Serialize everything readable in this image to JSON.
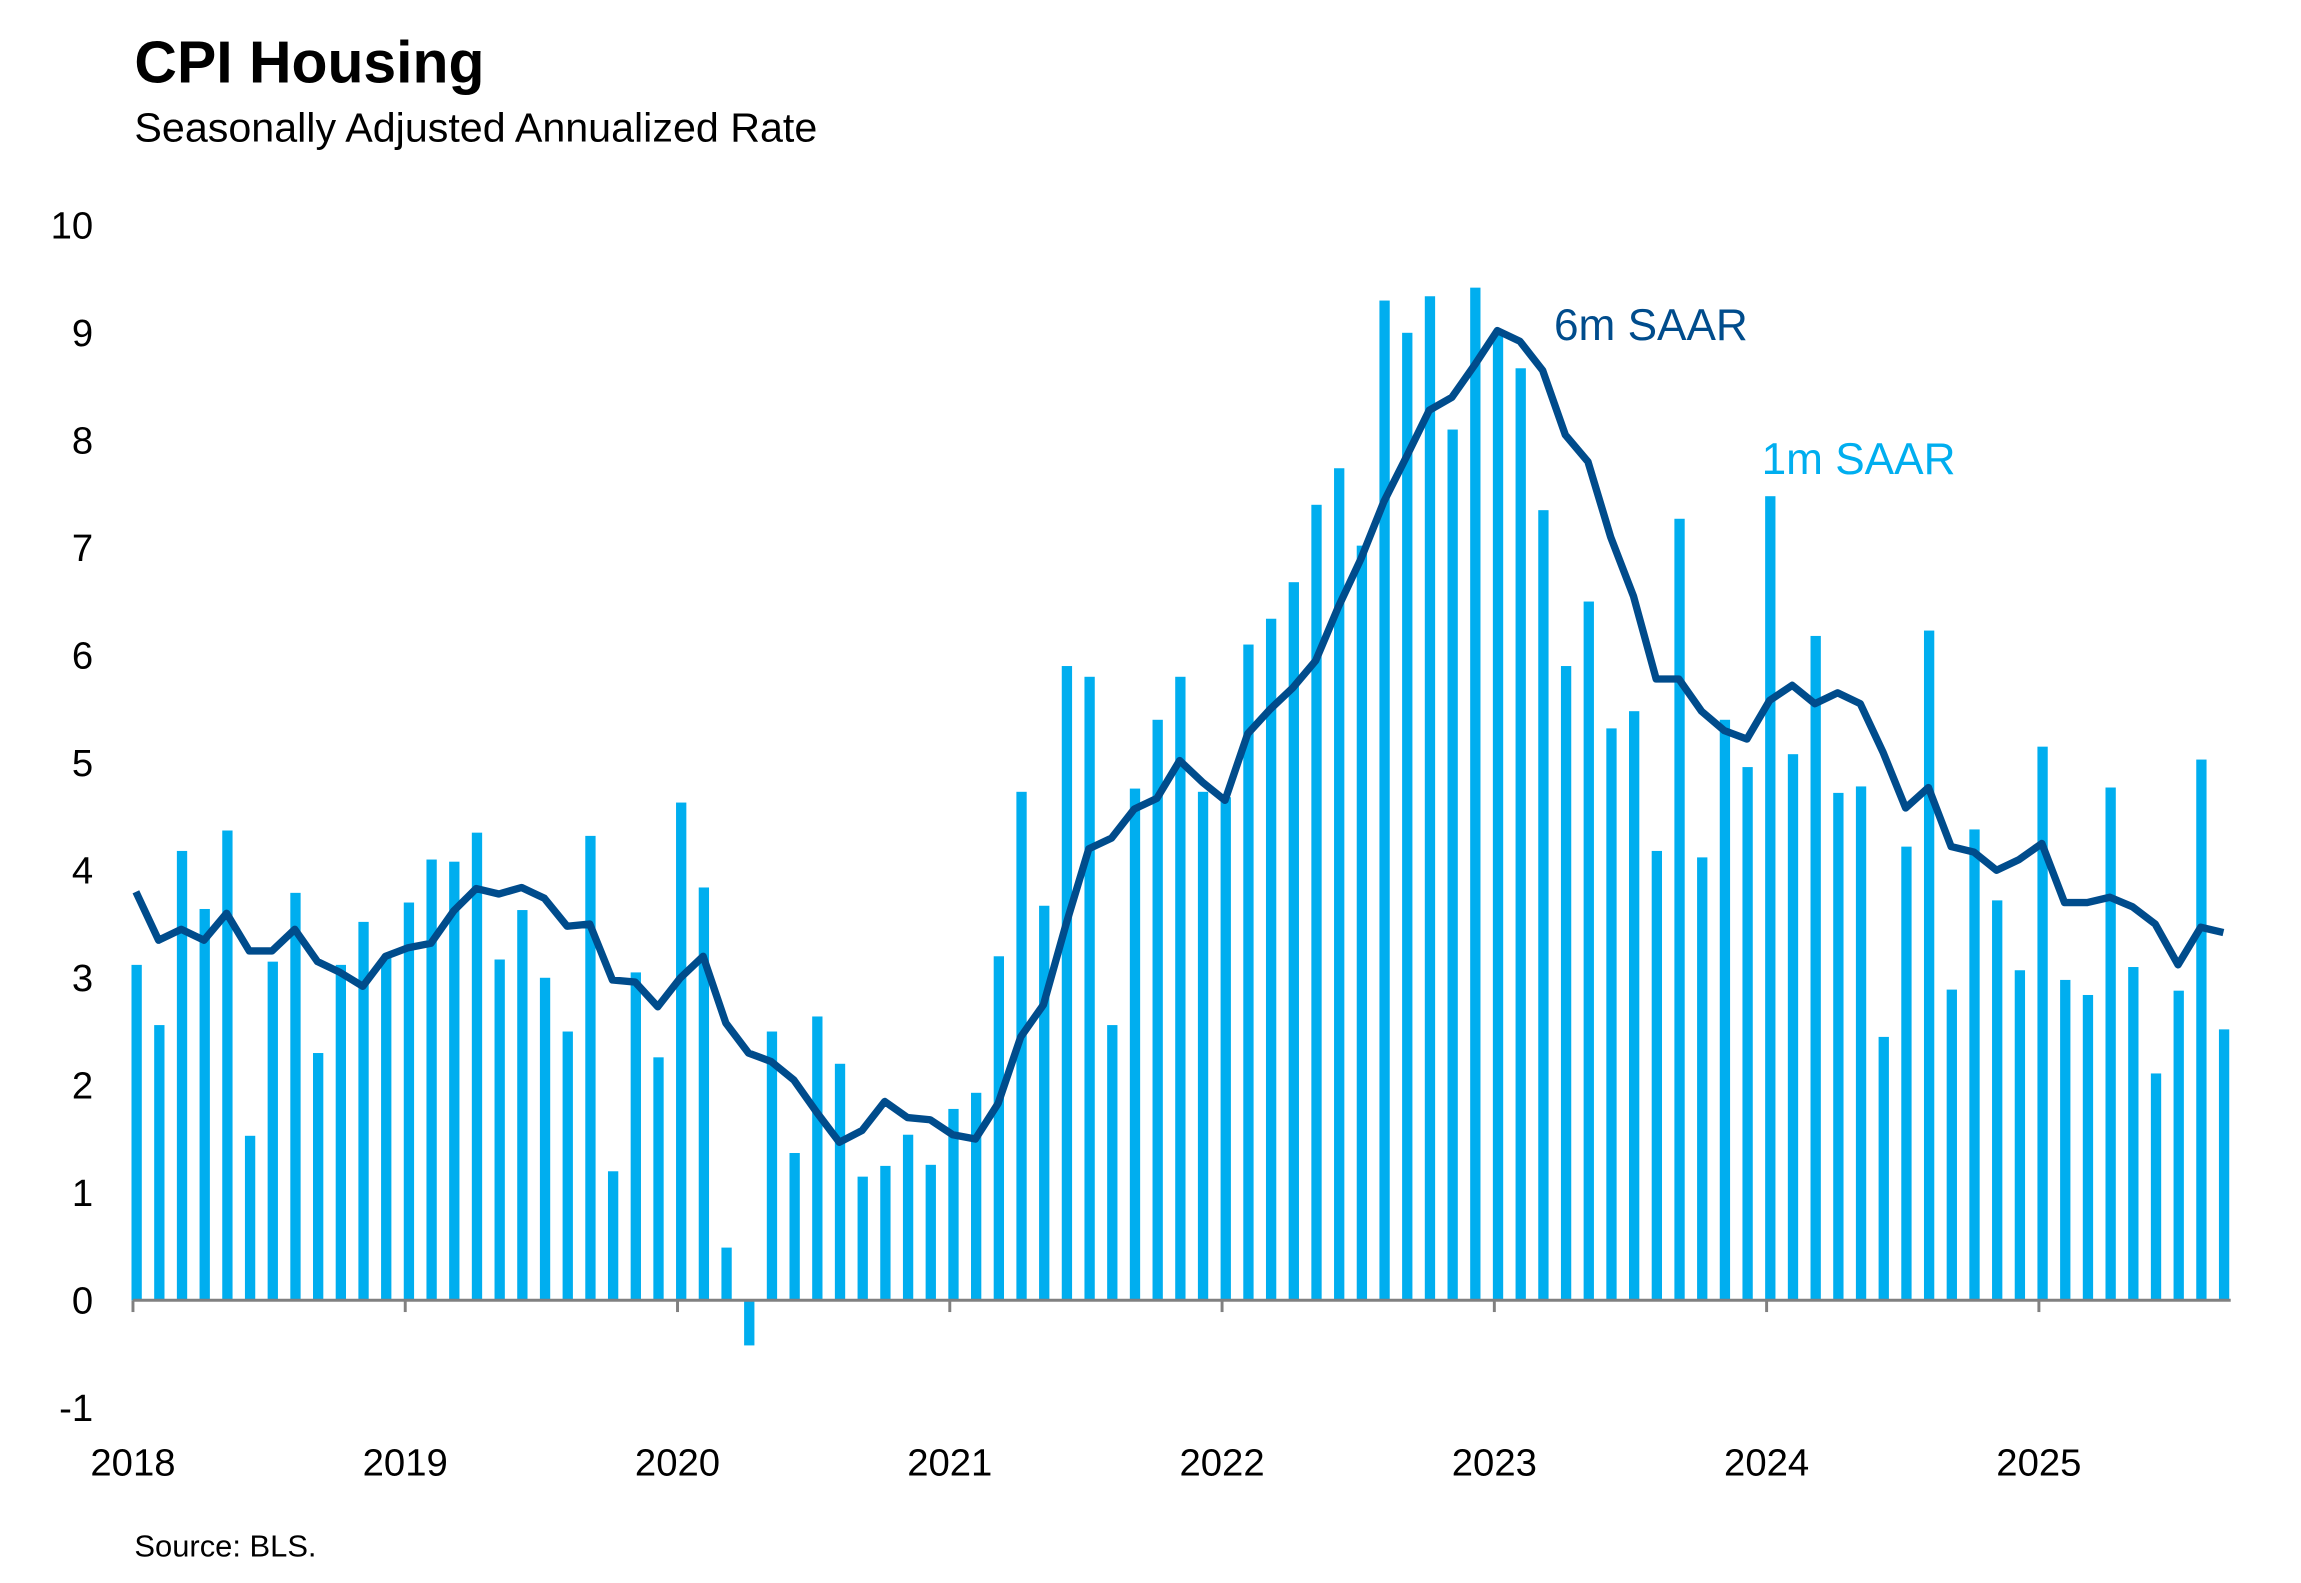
{
  "chart_data": {
    "type": "bar+line",
    "title": "CPI Housing",
    "subtitle": "Seasonally Adjusted Annualized Rate",
    "source": "Source: BLS.",
    "xlabel": "",
    "ylabel": "",
    "ylim": [
      -1,
      10
    ],
    "yticks": [
      "10",
      "9",
      "8",
      "7",
      "6",
      "5",
      "4",
      "3",
      "2",
      "1",
      "0",
      "-1"
    ],
    "ytick_values": [
      10,
      9,
      8,
      7,
      6,
      5,
      4,
      3,
      2,
      1,
      0,
      -1
    ],
    "xticks": [
      "2018",
      "2019",
      "2020",
      "2021",
      "2022",
      "2023",
      "2024",
      "2025"
    ],
    "start": "2018-01",
    "end": "2025-09",
    "grid": false,
    "colors": {
      "bars": "#00AEEF",
      "line": "#004C8C"
    },
    "series": [
      {
        "name": "1m SAAR",
        "kind": "bar",
        "label": "1m SAAR",
        "values": [
          3.12,
          2.56,
          4.18,
          3.64,
          4.37,
          1.53,
          3.15,
          3.79,
          2.3,
          3.12,
          3.52,
          3.2,
          3.7,
          4.1,
          4.08,
          4.35,
          3.17,
          3.63,
          3.0,
          2.5,
          4.32,
          1.2,
          3.05,
          2.26,
          4.63,
          3.84,
          0.49,
          -0.42,
          2.5,
          1.37,
          2.64,
          2.2,
          1.15,
          1.25,
          1.54,
          1.26,
          1.78,
          1.93,
          3.2,
          4.73,
          3.67,
          5.9,
          5.8,
          2.56,
          4.76,
          5.4,
          5.8,
          4.73,
          4.68,
          6.1,
          6.34,
          6.68,
          7.4,
          7.74,
          7.02,
          9.3,
          9.0,
          9.34,
          8.1,
          9.42,
          9.0,
          8.67,
          7.35,
          5.9,
          6.5,
          5.32,
          5.48,
          4.18,
          7.27,
          4.12,
          5.4,
          4.96,
          7.48,
          5.08,
          6.18,
          4.72,
          4.78,
          2.45,
          4.22,
          6.23,
          2.89,
          4.38,
          3.72,
          3.07,
          5.15,
          2.98,
          2.84,
          4.77,
          3.1,
          2.11,
          2.88,
          5.03,
          2.52
        ]
      },
      {
        "name": "6m SAAR",
        "kind": "line",
        "label": "6m SAAR",
        "values": [
          3.8,
          3.35,
          3.45,
          3.35,
          3.6,
          3.25,
          3.25,
          3.45,
          3.15,
          3.05,
          2.92,
          3.2,
          3.28,
          3.32,
          3.62,
          3.83,
          3.78,
          3.84,
          3.74,
          3.48,
          3.5,
          2.98,
          2.96,
          2.73,
          3.0,
          3.2,
          2.58,
          2.3,
          2.22,
          2.05,
          1.75,
          1.47,
          1.58,
          1.85,
          1.7,
          1.68,
          1.54,
          1.5,
          1.83,
          2.45,
          2.75,
          3.5,
          4.2,
          4.3,
          4.57,
          4.67,
          5.02,
          4.82,
          4.65,
          5.27,
          5.5,
          5.7,
          5.95,
          6.45,
          6.9,
          7.43,
          7.85,
          8.28,
          8.4,
          8.7,
          9.02,
          8.92,
          8.65,
          8.05,
          7.8,
          7.1,
          6.55,
          5.78,
          5.78,
          5.48,
          5.3,
          5.22,
          5.58,
          5.72,
          5.55,
          5.65,
          5.55,
          5.1,
          4.58,
          4.77,
          4.22,
          4.17,
          4.0,
          4.1,
          4.25,
          3.7,
          3.7,
          3.75,
          3.66,
          3.5,
          3.12,
          3.47,
          3.42
        ]
      }
    ]
  }
}
